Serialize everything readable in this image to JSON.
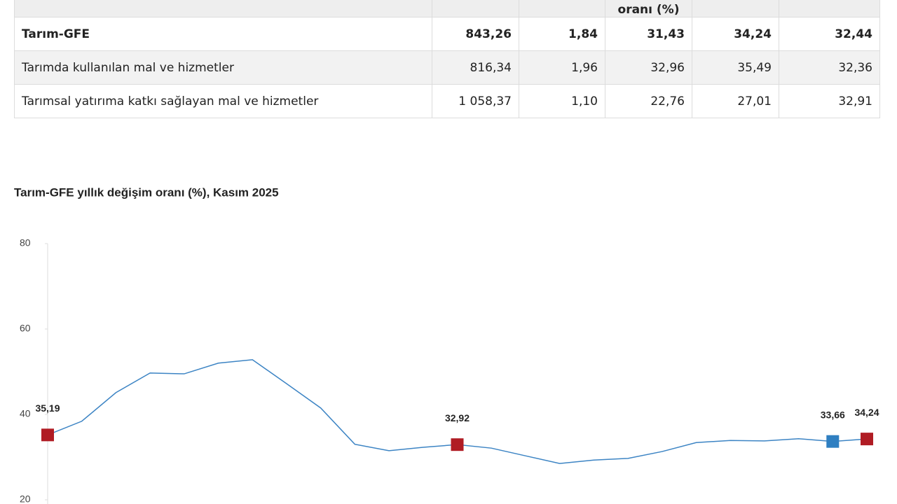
{
  "table": {
    "partial_header": "oranı (%)",
    "rows": [
      [
        "Tarım-GFE",
        "843,26",
        "1,84",
        "31,43",
        "34,24",
        "32,44"
      ],
      [
        "Tarımda kullanılan mal ve hizmetler",
        "816,34",
        "1,96",
        "32,96",
        "35,49",
        "32,36"
      ],
      [
        "Tarımsal yatırıma katkı sağlayan mal ve hizmetler",
        "1 058,37",
        "1,10",
        "22,76",
        "27,01",
        "32,91"
      ]
    ]
  },
  "chart_data": {
    "type": "line",
    "title": "Tarım-GFE yıllık değişim oranı (%), Kasım 2025",
    "color": "#3c84c4",
    "values": [
      35.19,
      38.4,
      45.1,
      49.7,
      49.5,
      52.0,
      52.8,
      47.2,
      41.5,
      33.0,
      31.5,
      32.3,
      32.92,
      32.1,
      30.3,
      28.5,
      29.3,
      29.7,
      31.3,
      33.4,
      33.9,
      33.8,
      34.3,
      33.66,
      34.24
    ],
    "value_labels": [
      "35,19",
      null,
      null,
      null,
      null,
      null,
      null,
      null,
      null,
      null,
      null,
      null,
      "32,92",
      null,
      null,
      null,
      null,
      null,
      null,
      null,
      null,
      null,
      null,
      "33,66",
      "34,24"
    ],
    "marker_colors": [
      "#b01c24",
      null,
      null,
      null,
      null,
      null,
      null,
      null,
      null,
      null,
      null,
      null,
      "#b01c24",
      null,
      null,
      null,
      null,
      null,
      null,
      null,
      null,
      null,
      null,
      "#2f7fc1",
      "#b01c24"
    ],
    "ylim": [
      20,
      80
    ],
    "yticks": [
      20,
      40,
      60,
      80
    ]
  }
}
